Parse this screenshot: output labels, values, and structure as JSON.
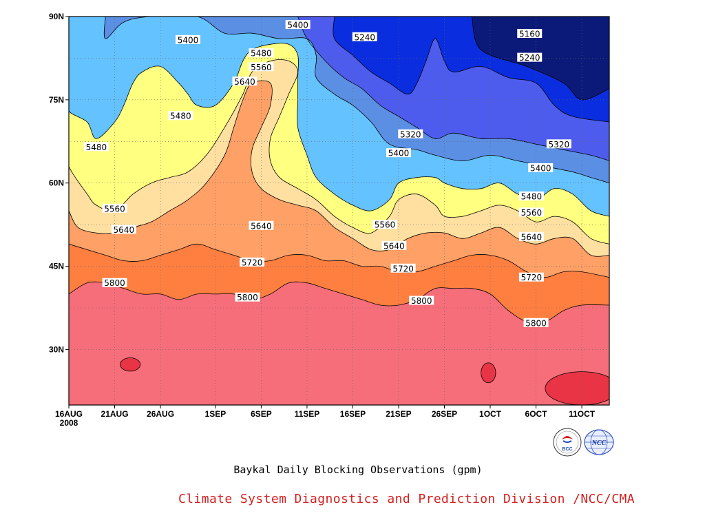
{
  "chart_data": {
    "type": "contour",
    "title": "Baykal Daily Blocking Observations (gpm)",
    "xlabel": "",
    "ylabel": "",
    "x_ticks": [
      "16AUG",
      "21AUG",
      "26AUG",
      "1SEP",
      "6SEP",
      "11SEP",
      "16SEP",
      "21SEP",
      "26SEP",
      "1OCT",
      "6OCT",
      "11OCT"
    ],
    "x_tick_days": [
      0,
      5,
      10,
      16,
      21,
      26,
      31,
      36,
      41,
      46,
      51,
      56
    ],
    "x_year": "2008",
    "x_range_days": [
      0,
      59
    ],
    "y_ticks": [
      "30N",
      "45N",
      "60N",
      "75N",
      "90N"
    ],
    "y_tick_values": [
      30,
      45,
      60,
      75,
      90
    ],
    "ylim": [
      20,
      90
    ],
    "grid": true,
    "levels": [
      5160,
      5240,
      5320,
      5400,
      5480,
      5560,
      5640,
      5720,
      5800
    ],
    "level_colors": [
      "#0b1a78",
      "#0a2de0",
      "#4e5ced",
      "#5b8fe4",
      "#64c2ff",
      "#ffff80",
      "#ffe0a0",
      "#ffa066",
      "#ff7f40",
      "#f66e7a",
      "#e83445"
    ],
    "isolines": [
      {
        "value": 5160,
        "points": [
          [
            44,
            90
          ],
          [
            45,
            84
          ],
          [
            50,
            81
          ],
          [
            54,
            78
          ],
          [
            56,
            75
          ],
          [
            59,
            77
          ]
        ]
      },
      {
        "value": 5240,
        "points": [
          [
            29,
            90
          ],
          [
            29,
            86
          ],
          [
            31,
            83
          ],
          [
            33,
            80
          ],
          [
            35,
            78
          ],
          [
            37,
            76
          ],
          [
            38,
            78
          ],
          [
            39,
            82
          ],
          [
            40,
            86
          ],
          [
            41,
            82
          ],
          [
            42,
            80
          ],
          [
            45,
            81
          ],
          [
            48,
            79
          ],
          [
            51,
            78
          ],
          [
            53,
            74
          ],
          [
            55,
            72
          ],
          [
            59,
            71
          ]
        ]
      },
      {
        "value": 5320,
        "points": [
          [
            25,
            90
          ],
          [
            26,
            86
          ],
          [
            28,
            82
          ],
          [
            30,
            79
          ],
          [
            32,
            77
          ],
          [
            34,
            74
          ],
          [
            36,
            72
          ],
          [
            38,
            70
          ],
          [
            40,
            68
          ],
          [
            42,
            69
          ],
          [
            45,
            68
          ],
          [
            48,
            68
          ],
          [
            51,
            67
          ],
          [
            54,
            66
          ],
          [
            57,
            65
          ],
          [
            59,
            64
          ]
        ]
      },
      {
        "value": 5400,
        "points": [
          [
            4,
            90
          ],
          [
            4,
            86
          ],
          [
            6,
            89
          ],
          [
            9,
            90
          ],
          [
            14,
            90
          ],
          [
            17,
            87
          ],
          [
            20,
            87
          ],
          [
            23,
            86
          ],
          [
            26,
            86
          ],
          [
            27,
            83
          ],
          [
            27,
            79
          ],
          [
            29,
            76
          ],
          [
            31,
            74
          ],
          [
            33,
            71
          ],
          [
            35,
            67
          ],
          [
            38,
            66
          ],
          [
            40,
            65
          ],
          [
            43,
            64
          ],
          [
            46,
            65
          ],
          [
            49,
            64
          ],
          [
            52,
            63
          ],
          [
            55,
            62
          ],
          [
            57,
            61
          ],
          [
            59,
            60
          ]
        ]
      },
      {
        "value": 5480,
        "points": [
          [
            0,
            76
          ],
          [
            0,
            73
          ],
          [
            2,
            71
          ],
          [
            3,
            68
          ],
          [
            5,
            71
          ],
          [
            6,
            74
          ],
          [
            7,
            78
          ],
          [
            8,
            80
          ],
          [
            10,
            81
          ],
          [
            12,
            78
          ],
          [
            13,
            76
          ],
          [
            14,
            74
          ],
          [
            16,
            74
          ],
          [
            18,
            78
          ],
          [
            19,
            82
          ],
          [
            20,
            84
          ],
          [
            22,
            85
          ],
          [
            24,
            85
          ],
          [
            25,
            83
          ],
          [
            25,
            79
          ],
          [
            25,
            75
          ],
          [
            25,
            70
          ],
          [
            26,
            65
          ],
          [
            27,
            61
          ],
          [
            29,
            58
          ],
          [
            31,
            56
          ],
          [
            33,
            55
          ],
          [
            35,
            57
          ],
          [
            36,
            60
          ],
          [
            38,
            61
          ],
          [
            40,
            61
          ],
          [
            41,
            60
          ],
          [
            43,
            59
          ],
          [
            45,
            59
          ],
          [
            47,
            60
          ],
          [
            49,
            58
          ],
          [
            51,
            57
          ],
          [
            53,
            59
          ],
          [
            55,
            58
          ],
          [
            57,
            55
          ],
          [
            59,
            54
          ]
        ]
      },
      {
        "value": 5560,
        "points": [
          [
            0,
            66
          ],
          [
            0,
            63
          ],
          [
            2,
            58
          ],
          [
            3,
            56
          ],
          [
            5,
            55
          ],
          [
            7,
            58
          ],
          [
            9,
            60
          ],
          [
            11,
            61
          ],
          [
            13,
            62
          ],
          [
            15,
            65
          ],
          [
            17,
            70
          ],
          [
            19,
            76
          ],
          [
            20,
            80
          ],
          [
            22,
            82
          ],
          [
            24,
            82
          ],
          [
            25,
            80
          ],
          [
            24,
            76
          ],
          [
            23,
            72
          ],
          [
            22,
            68
          ],
          [
            22,
            64
          ],
          [
            23,
            61
          ],
          [
            25,
            59
          ],
          [
            27,
            57
          ],
          [
            29,
            54
          ],
          [
            31,
            52
          ],
          [
            33,
            51
          ],
          [
            35,
            54
          ],
          [
            36,
            57
          ],
          [
            38,
            58
          ],
          [
            40,
            56
          ],
          [
            41,
            54
          ],
          [
            43,
            54
          ],
          [
            45,
            55
          ],
          [
            47,
            56
          ],
          [
            49,
            55
          ],
          [
            51,
            53
          ],
          [
            53,
            54
          ],
          [
            55,
            53
          ],
          [
            57,
            50
          ],
          [
            59,
            49
          ]
        ]
      },
      {
        "value": 5640,
        "points": [
          [
            0,
            55
          ],
          [
            1,
            52
          ],
          [
            3,
            51
          ],
          [
            5,
            51
          ],
          [
            7,
            52
          ],
          [
            9,
            53
          ],
          [
            11,
            55
          ],
          [
            13,
            57
          ],
          [
            15,
            60
          ],
          [
            17,
            65
          ],
          [
            18,
            70
          ],
          [
            19,
            75
          ],
          [
            20,
            78
          ],
          [
            22,
            78
          ],
          [
            22,
            74
          ],
          [
            21,
            70
          ],
          [
            20,
            66
          ],
          [
            20,
            62
          ],
          [
            21,
            59
          ],
          [
            23,
            57
          ],
          [
            25,
            56
          ],
          [
            27,
            55
          ],
          [
            29,
            52
          ],
          [
            31,
            50
          ],
          [
            33,
            48
          ],
          [
            35,
            48
          ],
          [
            37,
            50
          ],
          [
            39,
            51
          ],
          [
            41,
            51
          ],
          [
            43,
            50
          ],
          [
            45,
            51
          ],
          [
            47,
            52
          ],
          [
            49,
            50
          ],
          [
            51,
            49
          ],
          [
            53,
            50
          ],
          [
            55,
            50
          ],
          [
            57,
            47
          ],
          [
            59,
            47
          ]
        ]
      },
      {
        "value": 5720,
        "points": [
          [
            0,
            49
          ],
          [
            2,
            48
          ],
          [
            4,
            47
          ],
          [
            6,
            46
          ],
          [
            8,
            46
          ],
          [
            10,
            47
          ],
          [
            12,
            48
          ],
          [
            14,
            49
          ],
          [
            16,
            48
          ],
          [
            18,
            47
          ],
          [
            20,
            46
          ],
          [
            22,
            46
          ],
          [
            24,
            47
          ],
          [
            26,
            47
          ],
          [
            28,
            46
          ],
          [
            30,
            46
          ],
          [
            32,
            45
          ],
          [
            34,
            45
          ],
          [
            36,
            44
          ],
          [
            38,
            44
          ],
          [
            40,
            45
          ],
          [
            42,
            46
          ],
          [
            44,
            47
          ],
          [
            46,
            47
          ],
          [
            48,
            46
          ],
          [
            50,
            44
          ],
          [
            52,
            43
          ],
          [
            54,
            44
          ],
          [
            56,
            44
          ],
          [
            59,
            43
          ]
        ]
      },
      {
        "value": 5800,
        "points": [
          [
            0,
            40
          ],
          [
            2,
            42
          ],
          [
            4,
            42
          ],
          [
            6,
            41
          ],
          [
            8,
            40
          ],
          [
            10,
            40
          ],
          [
            12,
            39
          ],
          [
            14,
            40
          ],
          [
            16,
            40
          ],
          [
            18,
            40
          ],
          [
            20,
            39
          ],
          [
            22,
            40
          ],
          [
            24,
            42
          ],
          [
            26,
            42
          ],
          [
            28,
            41
          ],
          [
            30,
            40
          ],
          [
            32,
            39
          ],
          [
            34,
            38
          ],
          [
            36,
            38
          ],
          [
            38,
            39
          ],
          [
            40,
            41
          ],
          [
            42,
            41
          ],
          [
            44,
            41
          ],
          [
            46,
            40
          ],
          [
            48,
            37
          ],
          [
            50,
            35
          ],
          [
            52,
            35
          ],
          [
            54,
            37
          ],
          [
            56,
            38
          ],
          [
            59,
            38
          ]
        ]
      }
    ],
    "labels": [
      {
        "text": "5400",
        "x": 13,
        "y": 85.8
      },
      {
        "text": "5400",
        "x": 25,
        "y": 88.5
      },
      {
        "text": "5240",
        "x": 32.3,
        "y": 86.3
      },
      {
        "text": "5160",
        "x": 50.3,
        "y": 86.9
      },
      {
        "text": "5240",
        "x": 50.3,
        "y": 82.6
      },
      {
        "text": "5480",
        "x": 21,
        "y": 83.4
      },
      {
        "text": "5560",
        "x": 21,
        "y": 80.9
      },
      {
        "text": "5640",
        "x": 19.2,
        "y": 78.3
      },
      {
        "text": "5480",
        "x": 12.2,
        "y": 72.1
      },
      {
        "text": "5480",
        "x": 3,
        "y": 66.5
      },
      {
        "text": "5320",
        "x": 37.3,
        "y": 68.8
      },
      {
        "text": "5400",
        "x": 36,
        "y": 65.4
      },
      {
        "text": "5320",
        "x": 53.5,
        "y": 67.0
      },
      {
        "text": "5400",
        "x": 51.5,
        "y": 62.7
      },
      {
        "text": "5480",
        "x": 50.5,
        "y": 57.6
      },
      {
        "text": "5560",
        "x": 50.5,
        "y": 54.7
      },
      {
        "text": "5560",
        "x": 5,
        "y": 55.4
      },
      {
        "text": "5640",
        "x": 6,
        "y": 51.6
      },
      {
        "text": "5640",
        "x": 21,
        "y": 52.3
      },
      {
        "text": "5560",
        "x": 34.5,
        "y": 52.5
      },
      {
        "text": "5640",
        "x": 35.5,
        "y": 48.7
      },
      {
        "text": "5640",
        "x": 50.5,
        "y": 50.3
      },
      {
        "text": "5720",
        "x": 20,
        "y": 45.7
      },
      {
        "text": "5720",
        "x": 36.5,
        "y": 44.6
      },
      {
        "text": "5720",
        "x": 50.5,
        "y": 43.0
      },
      {
        "text": "5800",
        "x": 5,
        "y": 42.0
      },
      {
        "text": "5800",
        "x": 19.5,
        "y": 39.4
      },
      {
        "text": "5800",
        "x": 38.5,
        "y": 38.8
      },
      {
        "text": "5800",
        "x": 51,
        "y": 34.8
      }
    ],
    "blobs": [
      {
        "x": 6.7,
        "y": 27.3,
        "rx": 1.1,
        "ry": 1.2
      },
      {
        "x": 45.8,
        "y": 25.8,
        "rx": 0.8,
        "ry": 1.8
      },
      {
        "x": 56,
        "y": 23,
        "rx": 4,
        "ry": 3
      }
    ]
  },
  "title": "Baykal Daily Blocking Observations (gpm)",
  "credit": "Climate System Diagnostics and Prediction Division /NCC/CMA",
  "logos": [
    {
      "name": "BCC",
      "text": "BCC"
    },
    {
      "name": "NCC",
      "text": "NCC"
    }
  ]
}
